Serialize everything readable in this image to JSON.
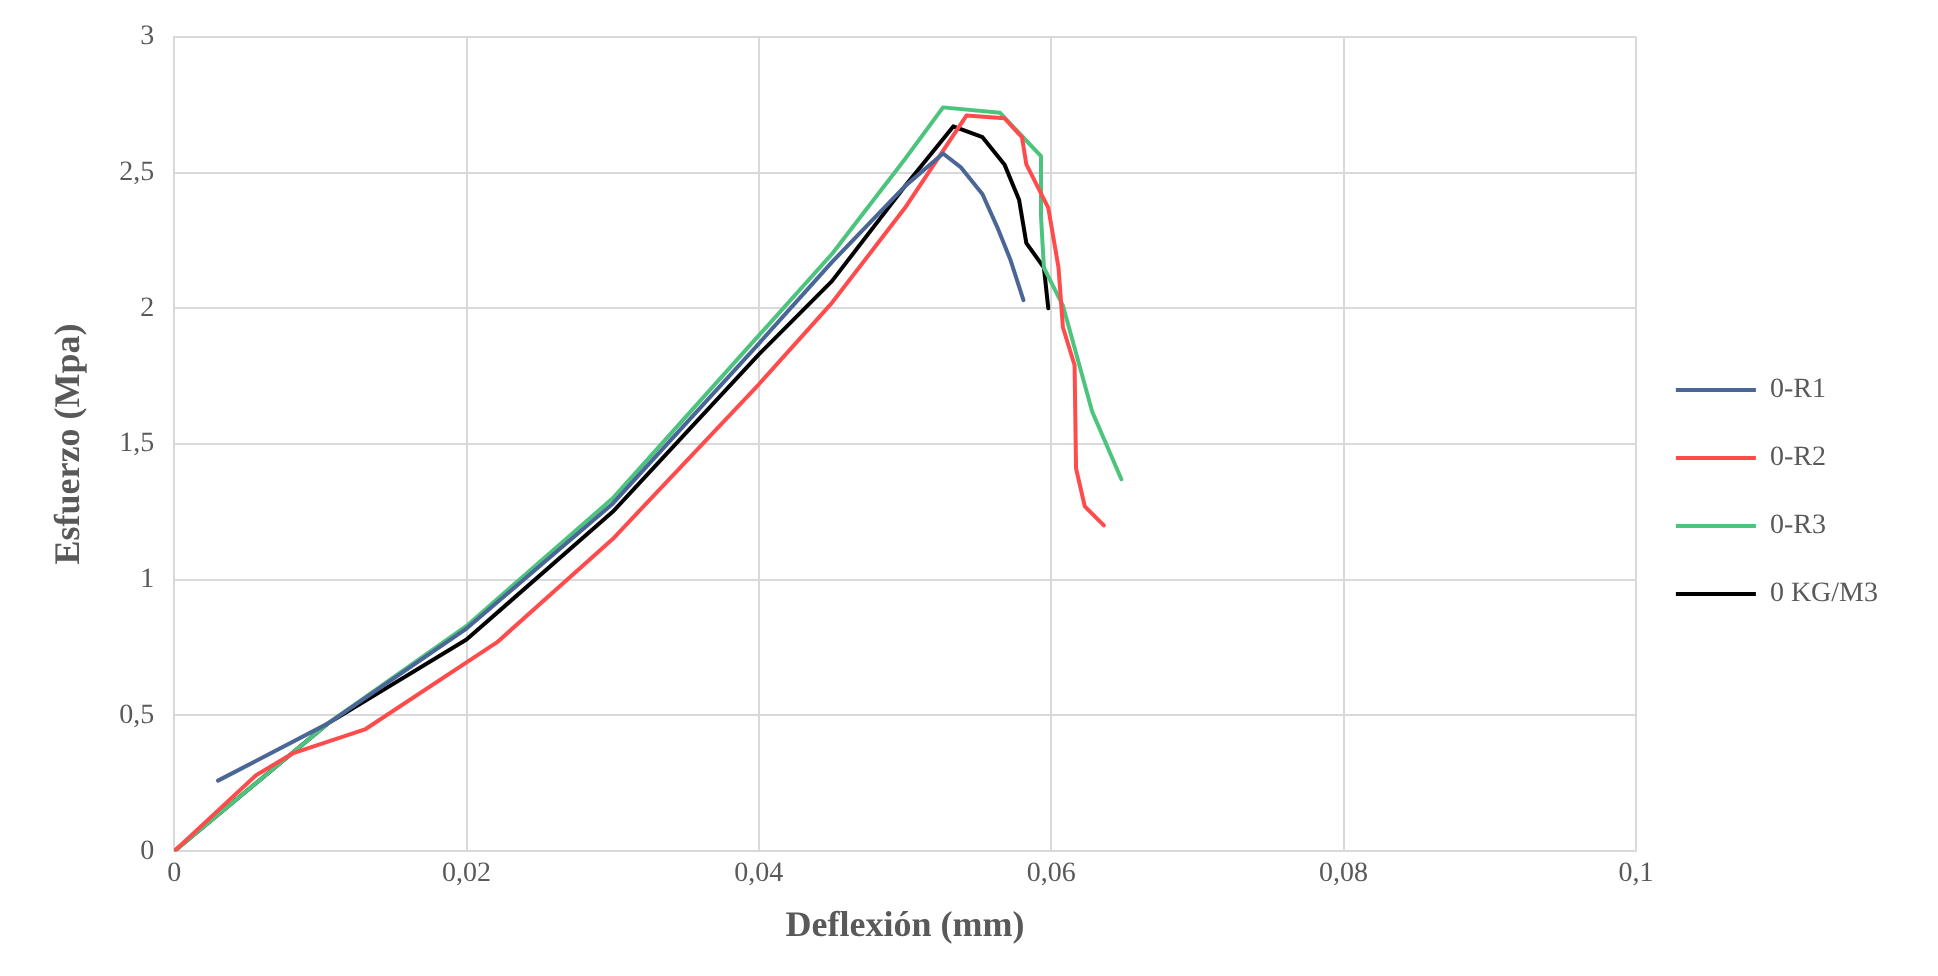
{
  "chart_data": {
    "type": "line",
    "xlabel": "Deflexión (mm)",
    "ylabel": "Esfuerzo (Mpa)",
    "xlim": [
      0,
      0.1
    ],
    "xticks": [
      0,
      {
        "value": 0.02,
        "label": "0,02"
      },
      {
        "value": 0.04,
        "label": "0,04"
      },
      {
        "value": 0.06,
        "label": "0,06"
      },
      {
        "value": 0.08,
        "label": "0,08"
      },
      {
        "value": 0.1,
        "label": "0,1"
      }
    ],
    "ylim": [
      0,
      3
    ],
    "yticks": [
      0,
      {
        "value": 0.5,
        "label": "0,5"
      },
      1,
      {
        "value": 1.5,
        "label": "1,5"
      },
      2,
      {
        "value": 2.5,
        "label": "2,5"
      },
      3
    ],
    "grid": true,
    "legend": "right",
    "marker": "none",
    "line_style": "solid",
    "series": [
      {
        "name": "0-R1",
        "color": "#4a6697",
        "x": [
          0.003,
          0.0105,
          0.02,
          0.03,
          0.04,
          0.045,
          0.05,
          0.0526,
          0.0538,
          0.0553,
          0.0563,
          0.0572,
          0.0581
        ],
        "values": [
          0.26,
          0.47,
          0.82,
          1.28,
          1.87,
          2.17,
          2.45,
          2.57,
          2.52,
          2.42,
          2.3,
          2.18,
          2.03
        ]
      },
      {
        "name": "0-R2",
        "color": "#ff4b4b",
        "x": [
          0,
          0.0056,
          0.0081,
          0.0131,
          0.0221,
          0.03,
          0.04,
          0.045,
          0.05,
          0.0542,
          0.0568,
          0.058,
          0.0583,
          0.0598,
          0.0605,
          0.0608,
          0.0616,
          0.0617,
          0.0623,
          0.0636
        ],
        "values": [
          0,
          0.28,
          0.36,
          0.45,
          0.77,
          1.15,
          1.72,
          2.02,
          2.37,
          2.71,
          2.7,
          2.63,
          2.53,
          2.37,
          2.15,
          1.93,
          1.79,
          1.41,
          1.27,
          1.2
        ]
      },
      {
        "name": "0-R3",
        "color": "#4dc47d",
        "x": [
          0,
          0.0105,
          0.02,
          0.03,
          0.04,
          0.045,
          0.05,
          0.0526,
          0.0565,
          0.0593,
          0.0593,
          0.0595,
          0.0608,
          0.0628,
          0.0648
        ],
        "values": [
          0,
          0.47,
          0.83,
          1.3,
          1.9,
          2.2,
          2.55,
          2.74,
          2.72,
          2.56,
          2.34,
          2.15,
          2.01,
          1.62,
          1.37
        ]
      },
      {
        "name": "0 KG/M3",
        "color": "#000000",
        "x": [
          0,
          0.0105,
          0.02,
          0.03,
          0.04,
          0.045,
          0.05,
          0.0533,
          0.0553,
          0.0568,
          0.0578,
          0.0583,
          0.0595,
          0.0598
        ],
        "values": [
          0,
          0.47,
          0.78,
          1.25,
          1.83,
          2.1,
          2.45,
          2.67,
          2.63,
          2.53,
          2.4,
          2.24,
          2.15,
          2.0
        ]
      }
    ]
  }
}
